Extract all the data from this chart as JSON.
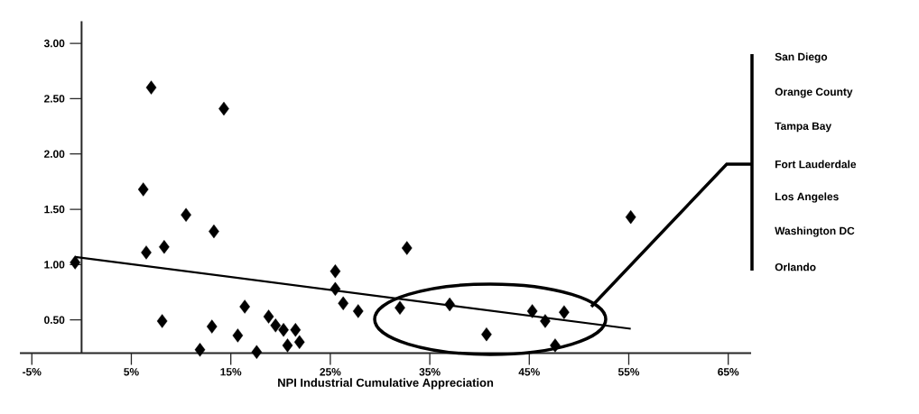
{
  "chart_data": {
    "type": "scatter",
    "xlabel": "NPI Industrial Cumulative Appreciation",
    "marker": "diamond",
    "xlim": [
      -6.2,
      67.3
    ],
    "ylim": [
      0.2,
      3.2
    ],
    "xticks": [
      {
        "value": -5,
        "label": "-5%"
      },
      {
        "value": 5,
        "label": "5%"
      },
      {
        "value": 15,
        "label": "15%"
      },
      {
        "value": 25,
        "label": "25%"
      },
      {
        "value": 35,
        "label": "35%"
      },
      {
        "value": 45,
        "label": "45%"
      },
      {
        "value": 55,
        "label": "55%"
      },
      {
        "value": 65,
        "label": "65%"
      }
    ],
    "yticks": [
      {
        "value": 0.5,
        "label": "0.50"
      },
      {
        "value": 1.0,
        "label": "1.00"
      },
      {
        "value": 1.5,
        "label": "1.50"
      },
      {
        "value": 2.0,
        "label": "2.00"
      },
      {
        "value": 2.5,
        "label": "2.50"
      },
      {
        "value": 3.0,
        "label": "3.00"
      }
    ],
    "series": [
      {
        "color": "#000000",
        "x": [
          -0.65,
          7.0,
          14.3,
          6.2,
          10.5,
          13.3,
          6.5,
          8.3,
          8.1,
          13.1,
          16.4,
          15.7,
          11.9,
          17.6,
          18.8,
          19.5,
          20.3,
          21.5,
          21.9,
          20.7,
          25.5,
          25.5,
          26.3,
          27.8,
          32.7,
          32.0,
          37.0,
          40.7,
          45.3,
          46.6,
          48.5,
          47.6,
          55.2
        ],
        "values": [
          1.02,
          2.6,
          2.41,
          1.68,
          1.45,
          1.3,
          1.11,
          1.16,
          0.49,
          0.44,
          0.62,
          0.36,
          0.23,
          0.21,
          0.53,
          0.45,
          0.41,
          0.41,
          0.3,
          0.27,
          0.94,
          0.78,
          0.65,
          0.58,
          1.15,
          0.61,
          0.64,
          0.37,
          0.58,
          0.49,
          0.57,
          0.27,
          1.43
        ]
      },
      {
        "type": "line",
        "color": "#000000",
        "marker": "none",
        "line_style": "solid",
        "x": [
          -0.65,
          55.2
        ],
        "values": [
          1.07,
          0.42
        ]
      }
    ],
    "annotations": [
      "San Diego",
      "Orange County",
      "Tampa Bay",
      "Fort Lauderdale",
      "Los Angeles",
      "Washington DC",
      "Orlando"
    ]
  }
}
